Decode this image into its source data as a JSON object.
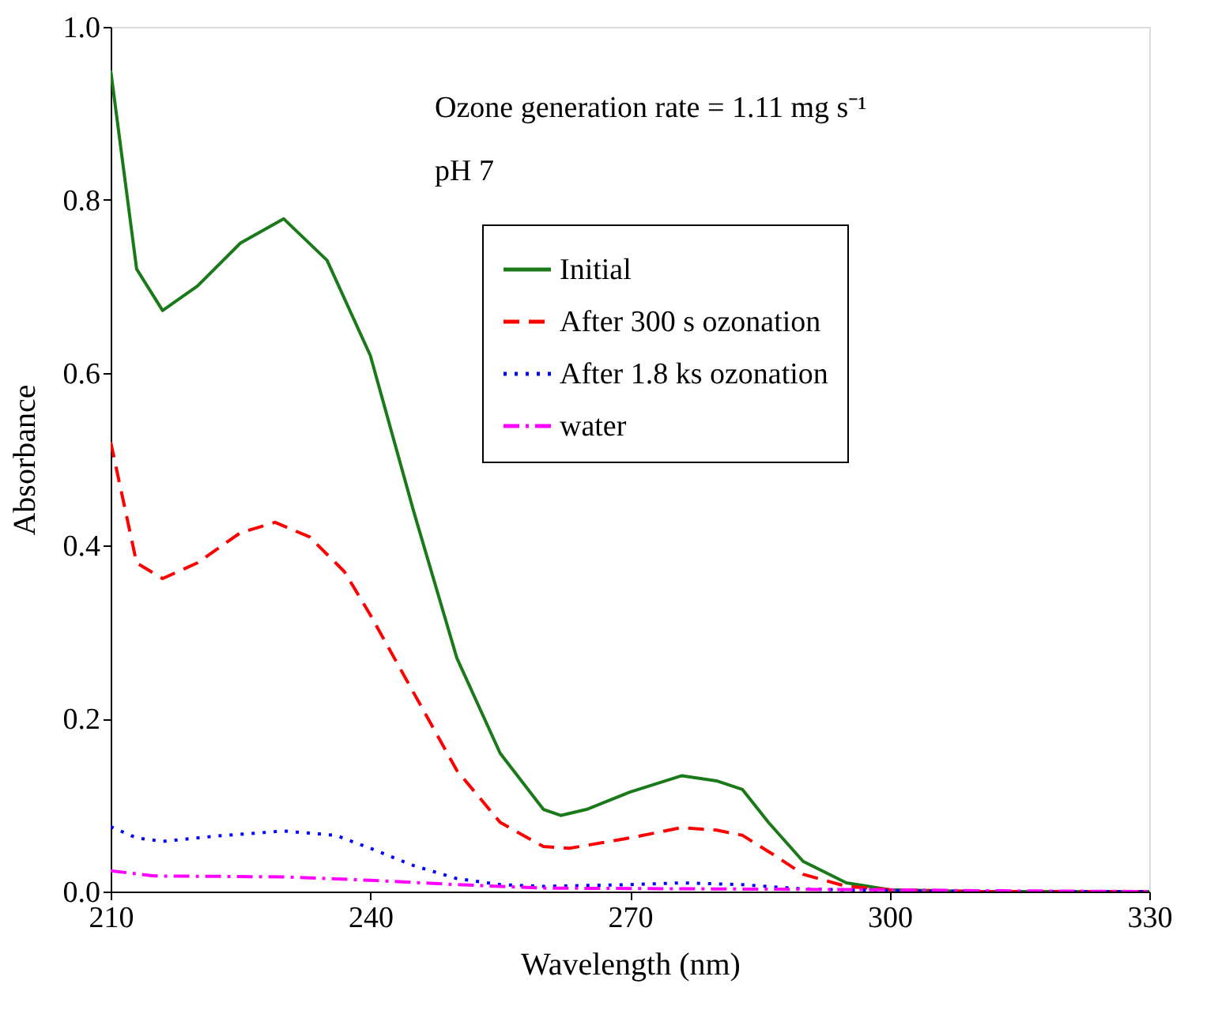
{
  "chart_data": {
    "type": "line",
    "xlabel": "Wavelength (nm)",
    "ylabel": "Absorbance",
    "xlim": [
      210,
      330
    ],
    "xticks": [
      210,
      240,
      270,
      300,
      330
    ],
    "ylim": [
      0,
      1.0
    ],
    "yticks": [
      {
        "value": 0,
        "label": "0.0"
      },
      0.2,
      0.4,
      0.6,
      0.8,
      {
        "value": 1.0,
        "label": "1.0"
      }
    ],
    "grid": false,
    "legend": "top right",
    "annotations": [
      "Ozone generation rate = 1.11 mg s⁻¹",
      "pH 7"
    ],
    "series": [
      {
        "name": "Initial",
        "color": "#1a7a1a",
        "line_style": "solid",
        "x": [
          210,
          213,
          216,
          220,
          225,
          230,
          235,
          240,
          245,
          250,
          255,
          260,
          262,
          265,
          270,
          276,
          280,
          283,
          286,
          290,
          295,
          300,
          310,
          330
        ],
        "values": [
          0.95,
          0.72,
          0.672,
          0.7,
          0.75,
          0.778,
          0.73,
          0.62,
          0.44,
          0.27,
          0.16,
          0.095,
          0.088,
          0.095,
          0.115,
          0.134,
          0.128,
          0.118,
          0.08,
          0.035,
          0.01,
          0.002,
          0,
          0
        ]
      },
      {
        "name": "After 300 s ozonation",
        "color": "#ff0000",
        "line_style": "dashed",
        "x": [
          210,
          213,
          216,
          220,
          225,
          229,
          233,
          237,
          240,
          245,
          250,
          255,
          260,
          263,
          270,
          276,
          280,
          283,
          287,
          290,
          295,
          300,
          310,
          330
        ],
        "values": [
          0.52,
          0.38,
          0.362,
          0.38,
          0.415,
          0.427,
          0.41,
          0.37,
          0.32,
          0.23,
          0.14,
          0.08,
          0.052,
          0.05,
          0.062,
          0.074,
          0.071,
          0.065,
          0.04,
          0.02,
          0.006,
          0.002,
          0,
          0
        ]
      },
      {
        "name": "After 1.8 ks ozonation",
        "color": "#0000ff",
        "line_style": "dotted",
        "x": [
          210,
          213,
          216,
          222,
          230,
          236,
          240,
          245,
          250,
          255,
          260,
          270,
          276,
          283,
          290,
          300,
          310,
          330
        ],
        "values": [
          0.075,
          0.062,
          0.058,
          0.064,
          0.07,
          0.065,
          0.05,
          0.03,
          0.015,
          0.008,
          0.006,
          0.008,
          0.01,
          0.008,
          0.003,
          0.001,
          0,
          0
        ]
      },
      {
        "name": "water",
        "color": "#ff00ff",
        "line_style": "dashdot",
        "x": [
          210,
          215,
          230,
          240,
          250,
          260,
          280,
          300,
          310,
          330
        ],
        "values": [
          0.024,
          0.018,
          0.017,
          0.013,
          0.008,
          0.004,
          0.003,
          0.002,
          0.001,
          0
        ]
      }
    ]
  }
}
